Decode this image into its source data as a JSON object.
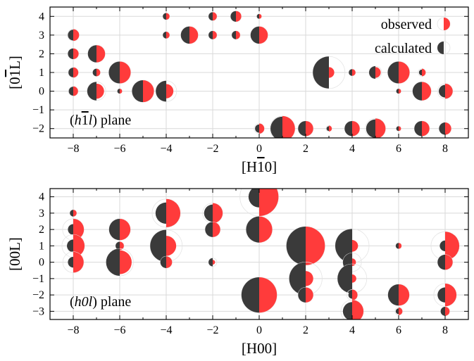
{
  "chart_data": [
    {
      "type": "scatter",
      "encoding": "split circles: left half = calculated intensity (dark), right half = observed intensity (red); radius scales with sqrt of intensity",
      "xlabel_pre": "[H",
      "xlabel_bar": "1",
      "xlabel_post": "0]",
      "ylabel_pre": "[0",
      "ylabel_bar": "1",
      "ylabel_post": "L]",
      "annotation_pre": "(h",
      "annotation_bar": "1",
      "annotation_italic": "l",
      "annotation_post": ") plane",
      "xlim": [
        -9,
        9
      ],
      "ylim": [
        -2.5,
        4.5
      ],
      "xticks": [
        -8,
        -6,
        -4,
        -2,
        0,
        2,
        4,
        6,
        8
      ],
      "yticks": [
        -2,
        -1,
        0,
        1,
        2,
        3,
        4
      ],
      "grid": true,
      "legend": {
        "placement": "top-right",
        "entries": [
          "observed",
          "calculated"
        ]
      },
      "points": [
        {
          "h": -8,
          "l": 3,
          "calc": 0.1,
          "obs": 0.12
        },
        {
          "h": -8,
          "l": 2,
          "calc": 0.1,
          "obs": 0.1
        },
        {
          "h": -8,
          "l": 1,
          "calc": 0.08,
          "obs": 0.09
        },
        {
          "h": -8,
          "l": 0,
          "calc": 0.07,
          "obs": 0.08
        },
        {
          "h": -7,
          "l": 2,
          "calc": 0.26,
          "obs": 0.26
        },
        {
          "h": -7,
          "l": 1,
          "calc": 0.05,
          "obs": 0.05
        },
        {
          "h": -7,
          "l": 0,
          "calc": 0.3,
          "obs": 0.2
        },
        {
          "h": -6,
          "l": 1,
          "calc": 0.42,
          "obs": 0.42
        },
        {
          "h": -6,
          "l": 0,
          "calc": 0.02,
          "obs": 0.02
        },
        {
          "h": -5,
          "l": 0,
          "calc": 0.42,
          "obs": 0.42
        },
        {
          "h": -4,
          "l": 4,
          "calc": 0.04,
          "obs": 0.04
        },
        {
          "h": -4,
          "l": 3,
          "calc": 0.04,
          "obs": 0.04
        },
        {
          "h": -4,
          "l": 0,
          "calc": 0.38,
          "obs": 0.18
        },
        {
          "h": -3,
          "l": 3,
          "calc": 0.26,
          "obs": 0.26
        },
        {
          "h": -2,
          "l": 4,
          "calc": 0.06,
          "obs": 0.06
        },
        {
          "h": -2,
          "l": 3,
          "calc": 0.06,
          "obs": 0.06
        },
        {
          "h": -1,
          "l": 4,
          "calc": 0.1,
          "obs": 0.1
        },
        {
          "h": -1,
          "l": 3,
          "calc": 0.06,
          "obs": 0.06
        },
        {
          "h": 0,
          "l": 4,
          "calc": 0.02,
          "obs": 0.02
        },
        {
          "h": 0,
          "l": 3,
          "calc": 0.26,
          "obs": 0.26
        },
        {
          "h": 0,
          "l": -2,
          "calc": 0.06,
          "obs": 0.09
        },
        {
          "h": 1,
          "l": -2,
          "calc": 0.5,
          "obs": 0.55
        },
        {
          "h": 2,
          "l": -2,
          "calc": 0.2,
          "obs": 0.2
        },
        {
          "h": 3,
          "l": 1,
          "calc": 0.9,
          "obs": 0.1
        },
        {
          "h": 3,
          "l": -2,
          "calc": 0.02,
          "obs": 0.03
        },
        {
          "h": 4,
          "l": 1,
          "calc": 0.04,
          "obs": 0.04
        },
        {
          "h": 4,
          "l": -2,
          "calc": 0.2,
          "obs": 0.2
        },
        {
          "h": 5,
          "l": 1,
          "calc": 0.14,
          "obs": 0.1
        },
        {
          "h": 5,
          "l": -2,
          "calc": 0.3,
          "obs": 0.36
        },
        {
          "h": 6,
          "l": 1,
          "calc": 0.42,
          "obs": 0.42
        },
        {
          "h": 6,
          "l": 0,
          "calc": 0.02,
          "obs": 0.02
        },
        {
          "h": 6,
          "l": -2,
          "calc": 0.02,
          "obs": 0.02
        },
        {
          "h": 7,
          "l": 1,
          "calc": 0.03,
          "obs": 0.05
        },
        {
          "h": 7,
          "l": 0,
          "calc": 0.3,
          "obs": 0.3
        },
        {
          "h": 7,
          "l": -2,
          "calc": 0.2,
          "obs": 0.2
        },
        {
          "h": 8,
          "l": 0,
          "calc": 0.14,
          "obs": 0.2
        },
        {
          "h": 8,
          "l": -2,
          "calc": 0.13,
          "obs": 0.13
        }
      ]
    },
    {
      "type": "scatter",
      "encoding": "split circles: left half = calculated intensity (dark), right half = observed intensity (red); radius scales with sqrt of intensity",
      "xlabel": "[H00]",
      "ylabel": "[00L]",
      "annotation_pre": "(h0",
      "annotation_italic": "l",
      "annotation_post": ") plane",
      "xlim": [
        -9,
        9
      ],
      "ylim": [
        -3.5,
        4.5
      ],
      "xticks": [
        -8,
        -6,
        -4,
        -2,
        0,
        2,
        4,
        6,
        8
      ],
      "yticks": [
        -3,
        -2,
        -1,
        0,
        1,
        2,
        3,
        4
      ],
      "grid": true,
      "points": [
        {
          "h": -8,
          "l": 3,
          "calc": 0.04,
          "obs": 0.04
        },
        {
          "h": -8,
          "l": 2,
          "calc": 0.1,
          "obs": 0.4
        },
        {
          "h": -8,
          "l": 1,
          "calc": 0.14,
          "obs": 0.45
        },
        {
          "h": -8,
          "l": 0,
          "calc": 0.1,
          "obs": 0.38
        },
        {
          "h": -6,
          "l": 2,
          "calc": 0.4,
          "obs": 0.4
        },
        {
          "h": -6,
          "l": 1,
          "calc": 0.06,
          "obs": 0.06
        },
        {
          "h": -6,
          "l": 0,
          "calc": 0.65,
          "obs": 0.5
        },
        {
          "h": -4,
          "l": 3,
          "calc": 0.4,
          "obs": 0.7
        },
        {
          "h": -4,
          "l": 1,
          "calc": 0.9,
          "obs": 0.35
        },
        {
          "h": -4,
          "l": 0,
          "calc": 0.12,
          "obs": 0.12
        },
        {
          "h": -2,
          "l": 3,
          "calc": 0.26,
          "obs": 0.35
        },
        {
          "h": -2,
          "l": 2,
          "calc": 0.2,
          "obs": 0.2
        },
        {
          "h": -2,
          "l": 0,
          "calc": 0.06,
          "obs": 0.02
        },
        {
          "h": 0,
          "l": 4,
          "calc": 0.4,
          "obs": 1.3
        },
        {
          "h": 0,
          "l": 2,
          "calc": 0.6,
          "obs": 0.6
        },
        {
          "h": 0,
          "l": -2,
          "calc": 1.1,
          "obs": 1.1
        },
        {
          "h": 2,
          "l": 1,
          "calc": 1.3,
          "obs": 1.3
        },
        {
          "h": 2,
          "l": -1,
          "calc": 0.95,
          "obs": 0.2
        },
        {
          "h": 2,
          "l": -2,
          "calc": 0.2,
          "obs": 0.2
        },
        {
          "h": 4,
          "l": 1,
          "calc": 1.0,
          "obs": 0.12
        },
        {
          "h": 4,
          "l": 0,
          "calc": 0.3,
          "obs": 0.05
        },
        {
          "h": 4,
          "l": -1,
          "calc": 0.75,
          "obs": 0.06
        },
        {
          "h": 4,
          "l": -2,
          "calc": 0.05,
          "obs": 0.1
        },
        {
          "h": 4,
          "l": -3,
          "calc": 0.3,
          "obs": 0.45
        },
        {
          "h": 6,
          "l": 1,
          "calc": 0.03,
          "obs": 0.03
        },
        {
          "h": 6,
          "l": -2,
          "calc": 0.4,
          "obs": 0.4
        },
        {
          "h": 6,
          "l": -3,
          "calc": 0.03,
          "obs": 0.05
        },
        {
          "h": 8,
          "l": 1,
          "calc": 0.1,
          "obs": 0.7
        },
        {
          "h": 8,
          "l": 0,
          "calc": 0.2,
          "obs": 0.2
        },
        {
          "h": 8,
          "l": -2,
          "calc": 0.2,
          "obs": 0.45
        },
        {
          "h": 8,
          "l": -3,
          "calc": 0.07,
          "obs": 0.07
        }
      ]
    }
  ],
  "colors": {
    "observed": "#ff3b3b",
    "calculated": "#3a3a3a",
    "grid": "#d9d9d9"
  }
}
